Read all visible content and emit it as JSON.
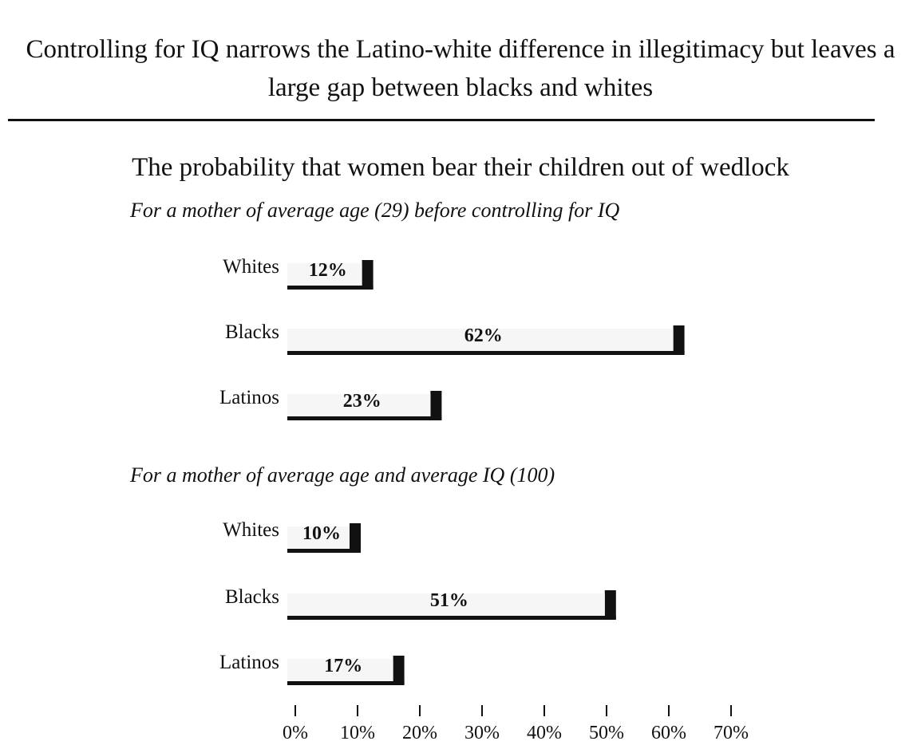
{
  "chart_data": {
    "type": "bar",
    "orientation": "horizontal",
    "title": "Controlling for IQ narrows the Latino-white difference in illegitimacy but leaves a large gap between blacks and whites",
    "subtitle": "The probability that women bear their children out of wedlock",
    "xlim": [
      0,
      70
    ],
    "x_ticks": [
      "0%",
      "10%",
      "20%",
      "30%",
      "40%",
      "50%",
      "60%",
      "70%"
    ],
    "grid": false,
    "panels": [
      {
        "label": "For a mother of average age (29) before controlling for IQ",
        "categories": [
          "Whites",
          "Blacks",
          "Latinos"
        ],
        "values": [
          12,
          62,
          23
        ],
        "value_labels": [
          "12%",
          "62%",
          "23%"
        ]
      },
      {
        "label": "For a mother of average age and average IQ  (100)",
        "categories": [
          "Whites",
          "Blacks",
          "Latinos"
        ],
        "values": [
          10,
          51,
          17
        ],
        "value_labels": [
          "10%",
          "51%",
          "17%"
        ]
      }
    ]
  }
}
